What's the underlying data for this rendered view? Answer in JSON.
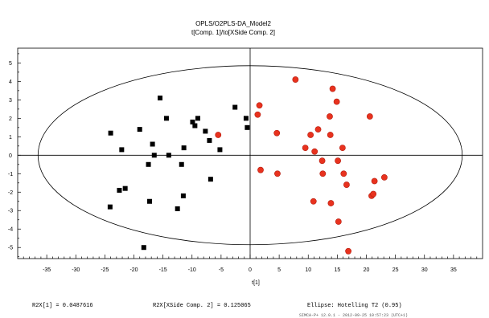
{
  "chart_data": {
    "type": "scatter",
    "title": "OPLS/O2PLS-DA_Model2",
    "subtitle": "t[Comp. 1]/to[XSide Comp. 2]",
    "xlabel": "t[1]",
    "ylabel": "",
    "xlim": [
      -40,
      40
    ],
    "ylim": [
      -5.6,
      5.8
    ],
    "xticks": [
      -35,
      -30,
      -25,
      -20,
      -15,
      -10,
      -5,
      0,
      5,
      10,
      15,
      20,
      25,
      30,
      35
    ],
    "yticks": [
      -5,
      -4,
      -3,
      -2,
      -1,
      0,
      1,
      2,
      3,
      4,
      5
    ],
    "xtick_labels": [
      "-35",
      "-30",
      "-25",
      "-20",
      "-15",
      "-10",
      "-5",
      "0",
      "5",
      "10",
      "15",
      "20",
      "25",
      "30",
      "35"
    ],
    "ytick_labels": [
      "-5",
      "-4",
      "-3",
      "-2",
      "-1",
      "0",
      "1",
      "2",
      "3",
      "4",
      "5"
    ],
    "ellipse": {
      "rx": 36.5,
      "ry": 4.85
    },
    "grid": false,
    "series": [
      {
        "marker": "square",
        "color": "#000000",
        "points": [
          [
            -24,
            1.2
          ],
          [
            -24.1,
            -2.8
          ],
          [
            -22.1,
            0.3
          ],
          [
            -22.5,
            -1.9
          ],
          [
            -21.5,
            -1.8
          ],
          [
            -19,
            1.4
          ],
          [
            -18.3,
            -5
          ],
          [
            -17.5,
            -0.5
          ],
          [
            -17.3,
            -2.5
          ],
          [
            -16.8,
            0.6
          ],
          [
            -16.5,
            0
          ],
          [
            -15.5,
            3.1
          ],
          [
            -14.4,
            2.0
          ],
          [
            -14.0,
            0
          ],
          [
            -12.5,
            -2.9
          ],
          [
            -11.8,
            -0.5
          ],
          [
            -11.5,
            -2.2
          ],
          [
            -11.4,
            0.4
          ],
          [
            -9.9,
            1.8
          ],
          [
            -9.5,
            1.6
          ],
          [
            -9.0,
            2.0
          ],
          [
            -7.7,
            1.3
          ],
          [
            -7.0,
            0.8
          ],
          [
            -6.8,
            -1.3
          ],
          [
            -5.2,
            0.3
          ],
          [
            -2.6,
            2.6
          ],
          [
            -0.7,
            2.0
          ],
          [
            -0.5,
            1.5
          ]
        ]
      },
      {
        "marker": "circle",
        "color": "#e8321e",
        "points": [
          [
            -5.5,
            1.1
          ],
          [
            1.3,
            2.2
          ],
          [
            1.6,
            2.7
          ],
          [
            1.8,
            -0.8
          ],
          [
            4.6,
            1.2
          ],
          [
            4.7,
            -1.0
          ],
          [
            7.8,
            4.1
          ],
          [
            9.5,
            0.4
          ],
          [
            10.4,
            1.1
          ],
          [
            10.9,
            -2.5
          ],
          [
            11.1,
            0.2
          ],
          [
            11.7,
            1.4
          ],
          [
            12.4,
            -0.3
          ],
          [
            12.5,
            -1.0
          ],
          [
            13.7,
            2.1
          ],
          [
            13.8,
            1.1
          ],
          [
            13.9,
            -2.6
          ],
          [
            14.2,
            3.6
          ],
          [
            14.9,
            2.9
          ],
          [
            15.1,
            -0.3
          ],
          [
            15.2,
            -3.6
          ],
          [
            15.9,
            0.4
          ],
          [
            16.1,
            -1.0
          ],
          [
            16.6,
            -1.6
          ],
          [
            16.9,
            -5.2
          ],
          [
            20.6,
            2.1
          ],
          [
            20.9,
            -2.2
          ],
          [
            21.2,
            -2.1
          ],
          [
            21.4,
            -1.4
          ],
          [
            23.1,
            -1.2
          ]
        ]
      }
    ],
    "annotations": [
      "R2X[1] = 0.0487616",
      "R2X[XSide Comp. 2] = 0.125065",
      "Ellipse: Hotelling T2 (0.95)"
    ],
    "footnote": "SIMCA-P+ 12.0.1 - 2012-09-25 10:57:23 (UTC+1)"
  }
}
